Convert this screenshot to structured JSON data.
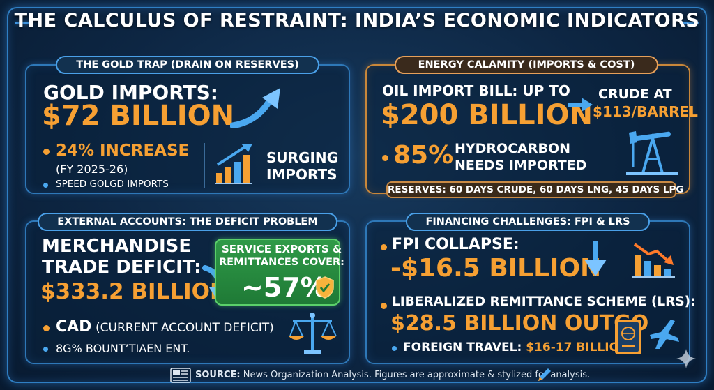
{
  "title": "THE CALCULUS OF RESTRAINT: INDIA’S ECONOMIC INDICATORS",
  "gold": {
    "header": "THE GOLD TRAP (DRAIN ON RESERVES)",
    "label": "GOLD IMPORTS:",
    "value": "$72 BILLION",
    "increase": "24% INCREASE",
    "period": "(FY 2025-26)",
    "note": "SPEED GOLGD IMPORTS",
    "surging": "SURGING",
    "imports": "IMPORTS"
  },
  "energy": {
    "header": "ENERGY CALAMITY (IMPORTS & COST)",
    "label": "OIL IMPORT BILL: UP TO",
    "value": "$200 BILLION",
    "crude_label": "CRUDE AT",
    "crude_price": "$113/BARREL",
    "share": "85%",
    "hydro1": "HYDROCARBON",
    "hydro2": "NEEDS IMPORTED",
    "reserves": "RESERVES: 60 DAYS CRUDE, 60 DAYS LNG, 45 DAYS LPG"
  },
  "external": {
    "header": "EXTERNAL ACCOUNTS: THE DEFICIT PROBLEM",
    "label1": "MERCHANDISE",
    "label2": "TRADE DEFICIT:",
    "value": "$333.2 BILLION",
    "cover1": "SERVICE EXPORTS &",
    "cover2": "REMITTANCES COVER:",
    "cover_value": "~57%",
    "cad": "CAD",
    "cad_full": "(CURRENT ACCOUNT DEFICIT)",
    "note": "8G% BOUNT’TIAEN ENT."
  },
  "financing": {
    "header": "FINANCING CHALLENGES: FPI & LRS",
    "fpi_label": "FPI COLLAPSE:",
    "fpi_value": "-$16.5 BILLION",
    "lrs_label": "LIBERALIZED REMITTANCE SCHEME (LRS):",
    "lrs_value": "$28.5 BILLION OUTGO",
    "travel_label": "FOREIGN TRAVEL:",
    "travel_value": "$16-17 BILLION"
  },
  "source": {
    "label": "SOURCE:",
    "text": "News Organization Analysis. Figures are approximate & stylized for analysis."
  },
  "icons": [
    "news-icon",
    "pen-icon",
    "arrow-up-icon",
    "bar-chart-up-icon",
    "arrow-right-icon",
    "oil-pump-icon",
    "arrow-down-icon",
    "shield-check-icon",
    "scales-icon",
    "bar-chart-down-icon",
    "passport-icon",
    "airplane-icon",
    "sparkle-icon"
  ],
  "colors": {
    "accent_orange": "#f6a033",
    "accent_blue": "#4aa0e8",
    "green": "#2f9a48",
    "background": "#0d2643"
  }
}
